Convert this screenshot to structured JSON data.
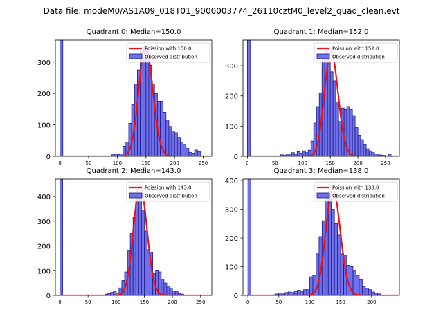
{
  "figure": {
    "title": "Data file: modeM0/AS1A09_018T01_9000003774_26110cztM0_level2_quad_clean.evt"
  },
  "colors": {
    "hist_fill": "#7070e8",
    "hist_edge": "#1a1a8a",
    "curve": "#ee1111"
  },
  "chart_data": [
    {
      "type": "bar",
      "title": "Quadrant 0: Median=150.0",
      "xlabel": "",
      "ylabel": "",
      "xlim": [
        -8,
        265
      ],
      "ylim": [
        0,
        370
      ],
      "xticks": [
        0,
        50,
        100,
        150,
        200,
        250
      ],
      "yticks": [
        0,
        100,
        200,
        300
      ],
      "bin_width": 5,
      "legend": {
        "position": "top-right",
        "curve_label": "Poission with 150.0",
        "hist_label": "Observed distribution"
      },
      "poisson_mean": 150.0,
      "poisson_peak": 350,
      "bins": [
        {
          "x": 0,
          "count": 370
        },
        {
          "x": 90,
          "count": 5
        },
        {
          "x": 95,
          "count": 8
        },
        {
          "x": 100,
          "count": 6
        },
        {
          "x": 105,
          "count": 8
        },
        {
          "x": 110,
          "count": 32
        },
        {
          "x": 115,
          "count": 45
        },
        {
          "x": 120,
          "count": 105
        },
        {
          "x": 125,
          "count": 165
        },
        {
          "x": 130,
          "count": 230
        },
        {
          "x": 135,
          "count": 275
        },
        {
          "x": 140,
          "count": 335
        },
        {
          "x": 145,
          "count": 350
        },
        {
          "x": 150,
          "count": 345
        },
        {
          "x": 155,
          "count": 290
        },
        {
          "x": 160,
          "count": 230
        },
        {
          "x": 165,
          "count": 200
        },
        {
          "x": 170,
          "count": 175
        },
        {
          "x": 175,
          "count": 175
        },
        {
          "x": 180,
          "count": 140
        },
        {
          "x": 185,
          "count": 115
        },
        {
          "x": 190,
          "count": 95
        },
        {
          "x": 195,
          "count": 80
        },
        {
          "x": 200,
          "count": 75
        },
        {
          "x": 205,
          "count": 60
        },
        {
          "x": 210,
          "count": 45
        },
        {
          "x": 215,
          "count": 38
        },
        {
          "x": 220,
          "count": 25
        },
        {
          "x": 225,
          "count": 12
        },
        {
          "x": 230,
          "count": 10
        },
        {
          "x": 235,
          "count": 20
        },
        {
          "x": 240,
          "count": 15
        }
      ]
    },
    {
      "type": "bar",
      "title": "Quadrant 1: Median=152.0",
      "xlabel": "",
      "ylabel": "",
      "xlim": [
        -8,
        275
      ],
      "ylim": [
        0,
        385
      ],
      "xticks": [
        0,
        50,
        100,
        150,
        200,
        250
      ],
      "yticks": [
        0,
        100,
        200,
        300
      ],
      "bin_width": 5,
      "legend": {
        "position": "top-right",
        "curve_label": "Poission with 152.0",
        "hist_label": "Observed distribution"
      },
      "poisson_mean": 152.0,
      "poisson_peak": 347,
      "bins": [
        {
          "x": 0,
          "count": 385
        },
        {
          "x": 60,
          "count": 5
        },
        {
          "x": 65,
          "count": 3
        },
        {
          "x": 70,
          "count": 8
        },
        {
          "x": 75,
          "count": 5
        },
        {
          "x": 80,
          "count": 12
        },
        {
          "x": 85,
          "count": 8
        },
        {
          "x": 90,
          "count": 15
        },
        {
          "x": 95,
          "count": 10
        },
        {
          "x": 100,
          "count": 18
        },
        {
          "x": 105,
          "count": 12
        },
        {
          "x": 110,
          "count": 20
        },
        {
          "x": 115,
          "count": 50
        },
        {
          "x": 120,
          "count": 110
        },
        {
          "x": 125,
          "count": 165
        },
        {
          "x": 130,
          "count": 210
        },
        {
          "x": 135,
          "count": 335
        },
        {
          "x": 140,
          "count": 350
        },
        {
          "x": 145,
          "count": 320
        },
        {
          "x": 150,
          "count": 280
        },
        {
          "x": 155,
          "count": 250
        },
        {
          "x": 160,
          "count": 180
        },
        {
          "x": 165,
          "count": 115
        },
        {
          "x": 170,
          "count": 160
        },
        {
          "x": 175,
          "count": 155
        },
        {
          "x": 180,
          "count": 165
        },
        {
          "x": 185,
          "count": 155
        },
        {
          "x": 190,
          "count": 135
        },
        {
          "x": 195,
          "count": 95
        },
        {
          "x": 200,
          "count": 70
        },
        {
          "x": 205,
          "count": 55
        },
        {
          "x": 210,
          "count": 40
        },
        {
          "x": 215,
          "count": 25
        },
        {
          "x": 220,
          "count": 18
        },
        {
          "x": 225,
          "count": 12
        },
        {
          "x": 230,
          "count": 8
        },
        {
          "x": 235,
          "count": 5
        },
        {
          "x": 240,
          "count": 4
        },
        {
          "x": 245,
          "count": 3
        },
        {
          "x": 255,
          "count": 8
        }
      ]
    },
    {
      "type": "bar",
      "title": "Quadrant 2: Median=143.0",
      "xlabel": "",
      "ylabel": "",
      "xlim": [
        -8,
        270
      ],
      "ylim": [
        0,
        470
      ],
      "xticks": [
        0,
        50,
        100,
        150,
        200,
        250
      ],
      "yticks": [
        0,
        100,
        200,
        300,
        400
      ],
      "bin_width": 5,
      "legend": {
        "position": "top-right",
        "curve_label": "Poission with 143.0",
        "hist_label": "Observed distribution"
      },
      "poisson_mean": 143.0,
      "poisson_peak": 445,
      "bins": [
        {
          "x": 0,
          "count": 470
        },
        {
          "x": 80,
          "count": 5
        },
        {
          "x": 85,
          "count": 8
        },
        {
          "x": 90,
          "count": 12
        },
        {
          "x": 95,
          "count": 15
        },
        {
          "x": 100,
          "count": 10
        },
        {
          "x": 105,
          "count": 30
        },
        {
          "x": 110,
          "count": 60
        },
        {
          "x": 115,
          "count": 95
        },
        {
          "x": 120,
          "count": 180
        },
        {
          "x": 125,
          "count": 250
        },
        {
          "x": 130,
          "count": 315
        },
        {
          "x": 135,
          "count": 405
        },
        {
          "x": 140,
          "count": 400
        },
        {
          "x": 145,
          "count": 345
        },
        {
          "x": 150,
          "count": 260
        },
        {
          "x": 155,
          "count": 185
        },
        {
          "x": 160,
          "count": 175
        },
        {
          "x": 165,
          "count": 90
        },
        {
          "x": 170,
          "count": 100
        },
        {
          "x": 175,
          "count": 95
        },
        {
          "x": 180,
          "count": 65
        },
        {
          "x": 185,
          "count": 50
        },
        {
          "x": 190,
          "count": 38
        },
        {
          "x": 195,
          "count": 30
        },
        {
          "x": 200,
          "count": 18
        },
        {
          "x": 205,
          "count": 15
        },
        {
          "x": 210,
          "count": 8
        },
        {
          "x": 215,
          "count": 5
        }
      ]
    },
    {
      "type": "bar",
      "title": "Quadrant 3: Median=138.0",
      "xlabel": "",
      "ylabel": "",
      "xlim": [
        -8,
        245
      ],
      "ylim": [
        0,
        405
      ],
      "xticks": [
        0,
        50,
        100,
        150,
        200
      ],
      "yticks": [
        0,
        100,
        200,
        300,
        400
      ],
      "bin_width": 5,
      "legend": {
        "position": "top-right",
        "curve_label": "Poission with 138.0",
        "hist_label": "Observed distribution"
      },
      "poisson_mean": 138.0,
      "poisson_peak": 370,
      "bins": [
        {
          "x": 0,
          "count": 405
        },
        {
          "x": 40,
          "count": 2
        },
        {
          "x": 45,
          "count": 5
        },
        {
          "x": 50,
          "count": 8
        },
        {
          "x": 55,
          "count": 5
        },
        {
          "x": 60,
          "count": 10
        },
        {
          "x": 65,
          "count": 12
        },
        {
          "x": 70,
          "count": 10
        },
        {
          "x": 75,
          "count": 15
        },
        {
          "x": 80,
          "count": 18
        },
        {
          "x": 85,
          "count": 15
        },
        {
          "x": 90,
          "count": 20
        },
        {
          "x": 95,
          "count": 20
        },
        {
          "x": 100,
          "count": 65
        },
        {
          "x": 105,
          "count": 70
        },
        {
          "x": 110,
          "count": 145
        },
        {
          "x": 115,
          "count": 205
        },
        {
          "x": 120,
          "count": 260
        },
        {
          "x": 125,
          "count": 340
        },
        {
          "x": 130,
          "count": 335
        },
        {
          "x": 135,
          "count": 300
        },
        {
          "x": 140,
          "count": 250
        },
        {
          "x": 145,
          "count": 210
        },
        {
          "x": 150,
          "count": 145
        },
        {
          "x": 155,
          "count": 140
        },
        {
          "x": 160,
          "count": 105
        },
        {
          "x": 165,
          "count": 100
        },
        {
          "x": 170,
          "count": 85
        },
        {
          "x": 175,
          "count": 70
        },
        {
          "x": 180,
          "count": 55
        },
        {
          "x": 185,
          "count": 30
        },
        {
          "x": 190,
          "count": 25
        },
        {
          "x": 195,
          "count": 20
        },
        {
          "x": 200,
          "count": 12
        },
        {
          "x": 205,
          "count": 8
        },
        {
          "x": 210,
          "count": 5
        }
      ]
    }
  ]
}
